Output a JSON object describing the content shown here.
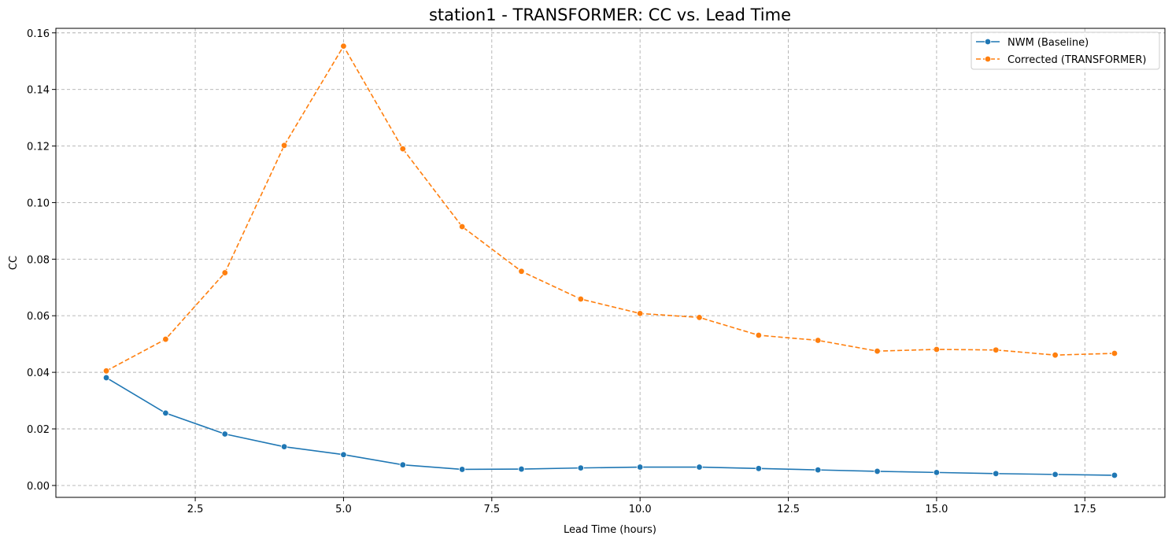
{
  "chart_data": {
    "type": "line",
    "title": "station1 - TRANSFORMER: CC vs. Lead Time",
    "xlabel": "Lead Time (hours)",
    "ylabel": "CC",
    "xlim": [
      0.15,
      18.85
    ],
    "ylim": [
      -0.0042,
      0.1616
    ],
    "xticks": [
      2.5,
      5.0,
      7.5,
      10.0,
      12.5,
      15.0,
      17.5
    ],
    "xtick_labels": [
      "2.5",
      "5.0",
      "7.5",
      "10.0",
      "12.5",
      "15.0",
      "17.5"
    ],
    "yticks": [
      0.0,
      0.02,
      0.04,
      0.06,
      0.08,
      0.1,
      0.12,
      0.14,
      0.16
    ],
    "ytick_labels": [
      "0.00",
      "0.02",
      "0.04",
      "0.06",
      "0.08",
      "0.10",
      "0.12",
      "0.14",
      "0.16"
    ],
    "grid": true,
    "legend_position": "top-right",
    "x": [
      1,
      2,
      3,
      4,
      5,
      6,
      7,
      8,
      9,
      10,
      11,
      12,
      13,
      14,
      15,
      16,
      17,
      18
    ],
    "series": [
      {
        "name": "NWM (Baseline)",
        "color": "#1f77b4",
        "line_style": "solid",
        "values": [
          0.0381,
          0.0256,
          0.0182,
          0.0137,
          0.0109,
          0.0073,
          0.0057,
          0.0058,
          0.0062,
          0.0065,
          0.0065,
          0.006,
          0.0055,
          0.005,
          0.0046,
          0.0042,
          0.0039,
          0.0036
        ]
      },
      {
        "name": "Corrected (TRANSFORMER)",
        "color": "#ff7f0e",
        "line_style": "dashed",
        "values": [
          0.0405,
          0.0517,
          0.0752,
          0.1202,
          0.1553,
          0.119,
          0.0915,
          0.0757,
          0.0659,
          0.0608,
          0.0594,
          0.0531,
          0.0513,
          0.0475,
          0.0481,
          0.0479,
          0.0461,
          0.0467
        ]
      }
    ]
  }
}
